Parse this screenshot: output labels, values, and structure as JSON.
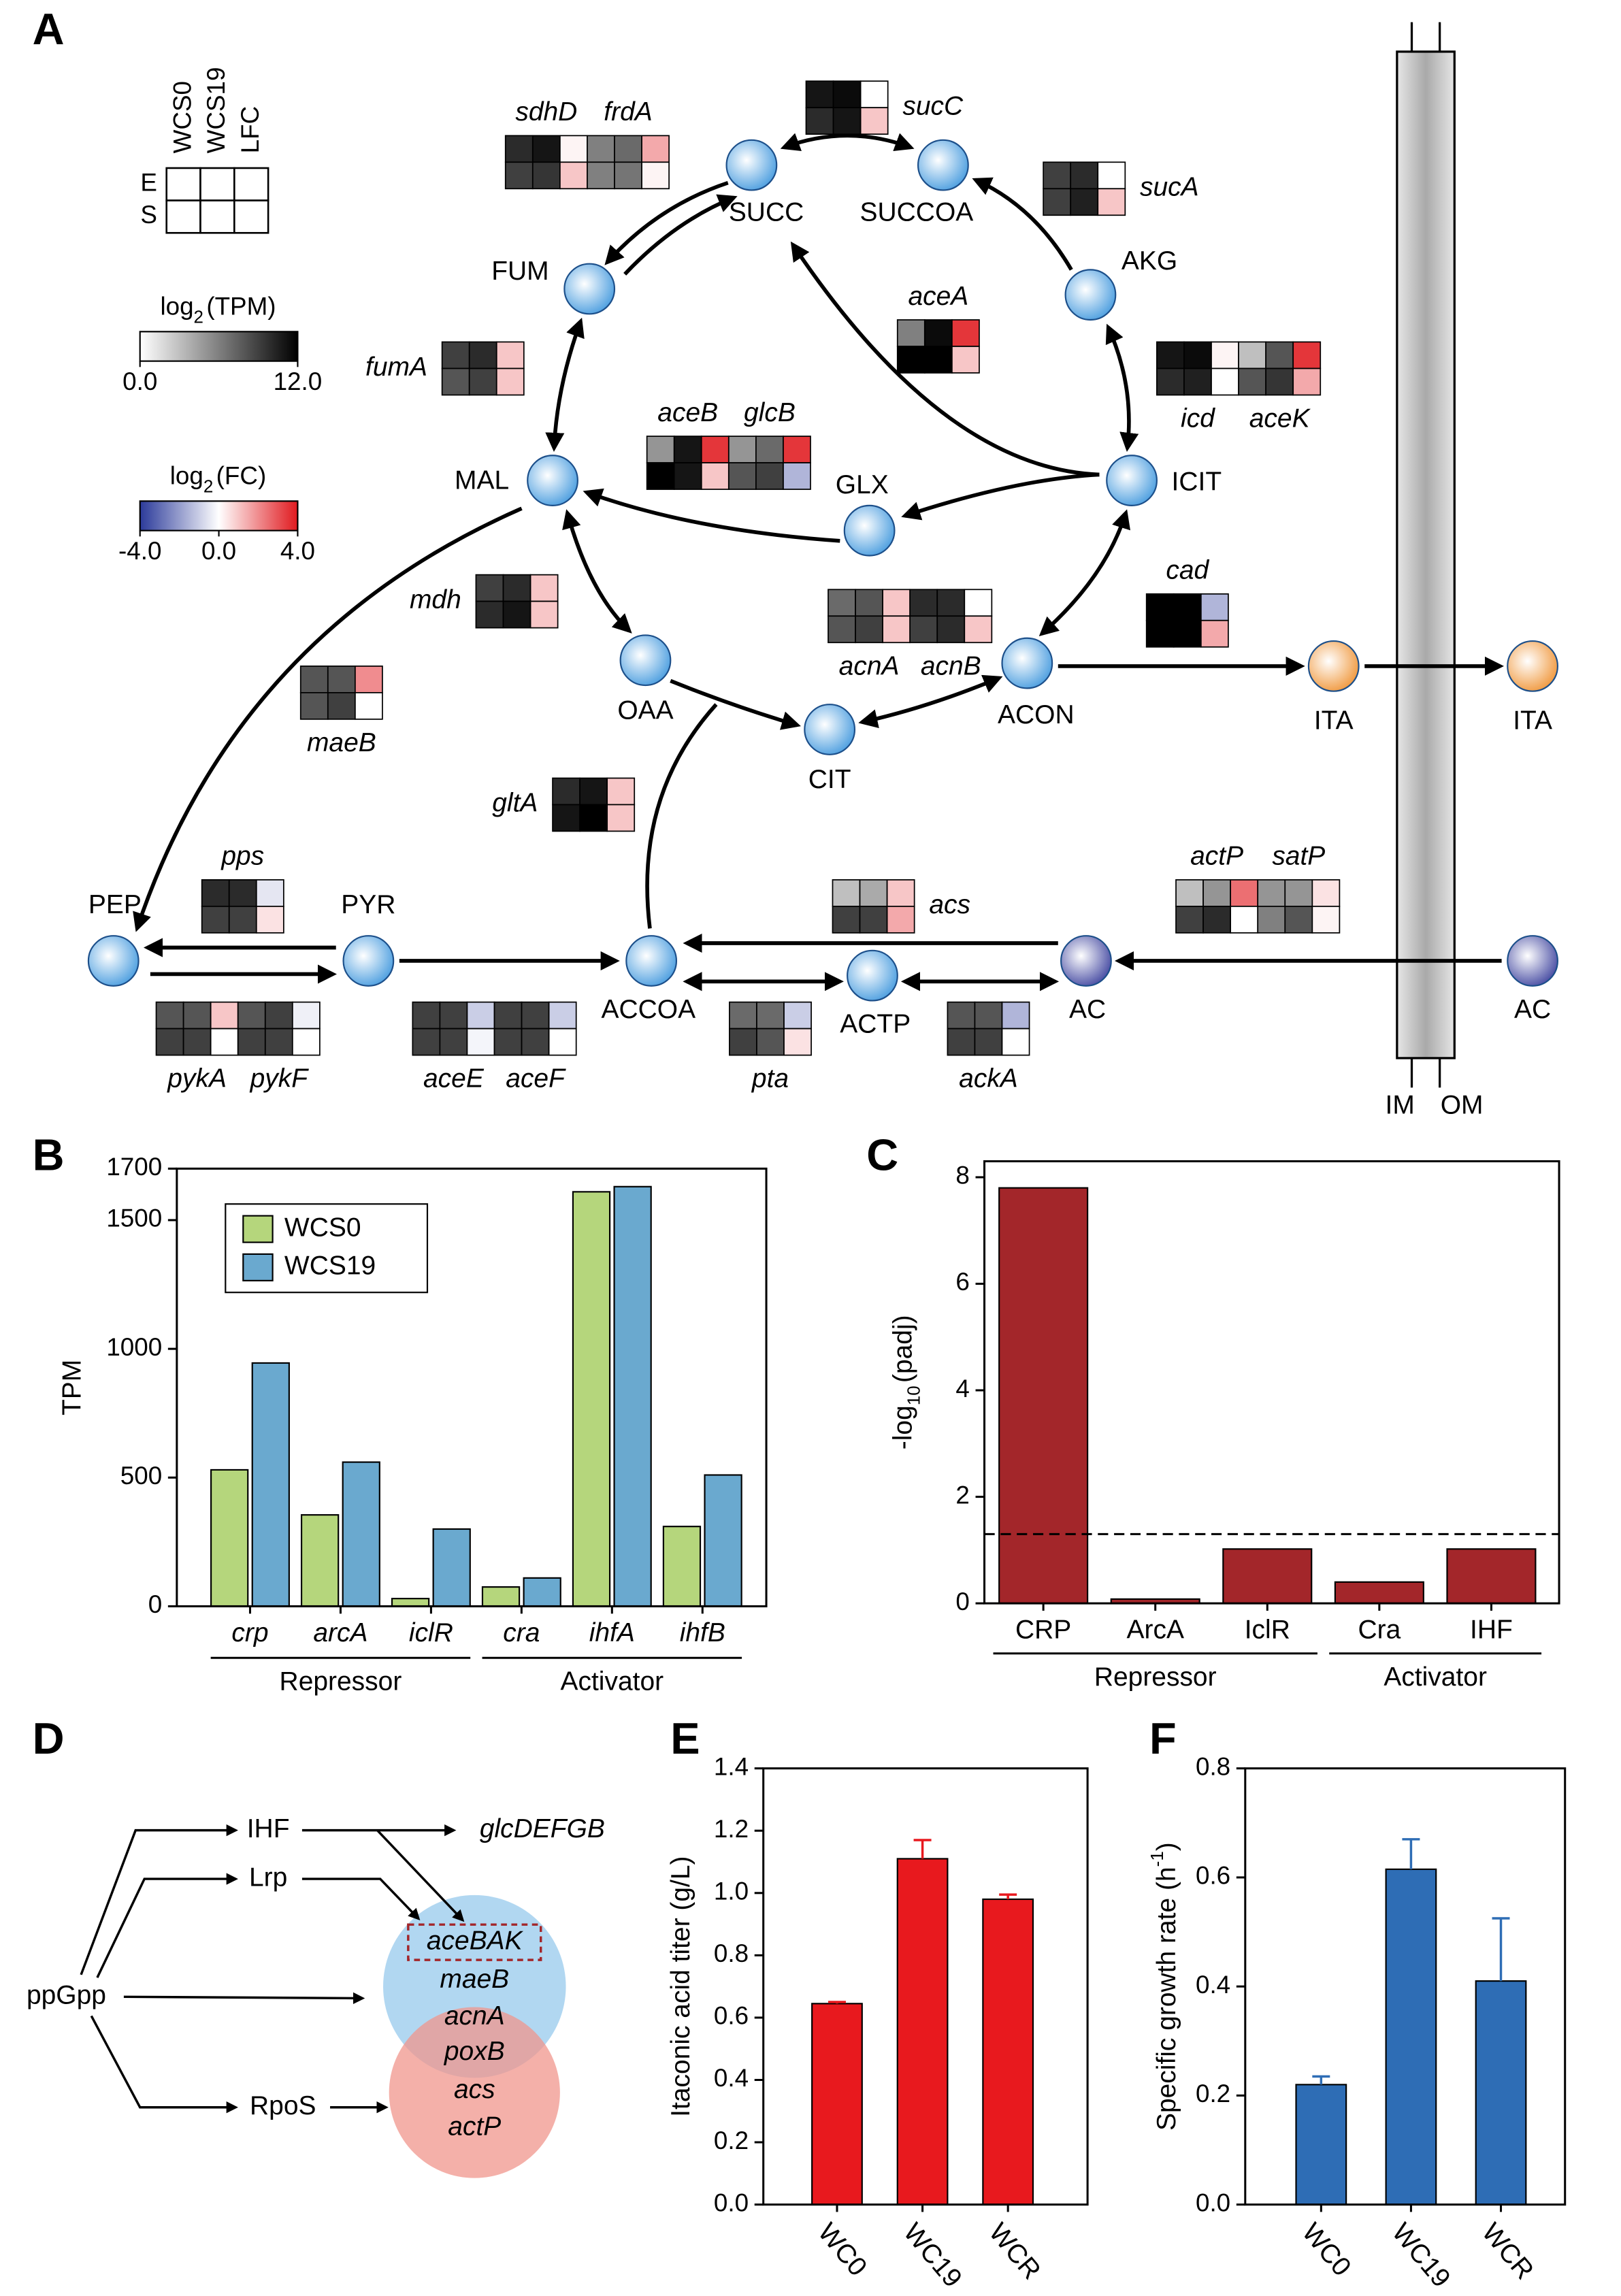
{
  "panel_labels": [
    "A",
    "B",
    "C",
    "D",
    "E",
    "F"
  ],
  "panel_a": {
    "legend": {
      "columns": [
        "WCS0",
        "WCS19",
        "LFC"
      ],
      "rows": [
        "E",
        "S"
      ]
    },
    "tpm_scale": {
      "label": {
        "main": "log",
        "sub": "2",
        "rest": "(TPM)"
      },
      "lim": [
        0,
        12
      ],
      "ticks": [
        {
          "value": 0,
          "label": "0.0"
        },
        {
          "value": 12,
          "label": "12.0"
        }
      ]
    },
    "fc_scale": {
      "label": {
        "main": "log",
        "sub": "2",
        "rest": "(FC)"
      },
      "lim": [
        -4,
        4
      ],
      "ticks": [
        {
          "value": -4,
          "label": "-4.0"
        },
        {
          "value": 0,
          "label": "0.0"
        },
        {
          "value": 4,
          "label": "4.0"
        }
      ]
    },
    "metabolites": [
      "SUCC",
      "SUCCOA",
      "AKG",
      "FUM",
      "ICIT",
      "MAL",
      "GLX",
      "OAA",
      "CIT",
      "ACON",
      "ITA",
      "ITA",
      "PEP",
      "PYR",
      "ACCOA",
      "ACTP",
      "AC",
      "AC"
    ],
    "membrane": [
      "IM",
      "OM"
    ],
    "heatmaps": [
      {
        "genes": [
          {
            "name": "sdhD",
            "tpm": [
              [
                10,
                11
              ],
              [
                9,
                9.5
              ]
            ],
            "lfc": [
              0.2,
              1
            ]
          },
          {
            "name": "frdA",
            "tpm": [
              [
                6,
                7
              ],
              [
                6,
                6.5
              ]
            ],
            "lfc": [
              1.5,
              0.2
            ]
          }
        ]
      },
      {
        "genes": [
          {
            "name": "sucC",
            "tpm": [
              [
                11,
                11.5
              ],
              [
                10,
                11
              ]
            ],
            "lfc": [
              0,
              1
            ]
          }
        ]
      },
      {
        "genes": [
          {
            "name": "sucA",
            "tpm": [
              [
                9,
                10
              ],
              [
                9,
                10.5
              ]
            ],
            "lfc": [
              0,
              1
            ]
          }
        ]
      },
      {
        "genes": [
          {
            "name": "fumA",
            "tpm": [
              [
                9,
                10
              ],
              [
                8,
                9
              ]
            ],
            "lfc": [
              1,
              1
            ]
          }
        ]
      },
      {
        "genes": [
          {
            "name": "aceA",
            "tpm": [
              [
                6,
                11.5
              ],
              [
                12,
                12
              ]
            ],
            "lfc": [
              3.5,
              1
            ]
          }
        ]
      },
      {
        "genes": [
          {
            "name": "icd",
            "tpm": [
              [
                11,
                11.5
              ],
              [
                10,
                10.5
              ]
            ],
            "lfc": [
              0.2,
              0
            ]
          },
          {
            "name": "aceK",
            "tpm": [
              [
                3,
                8
              ],
              [
                8,
                9.5
              ]
            ],
            "lfc": [
              3.5,
              1.5
            ]
          }
        ]
      },
      {
        "genes": [
          {
            "name": "aceB",
            "tpm": [
              [
                5,
                11
              ],
              [
                12,
                11
              ]
            ],
            "lfc": [
              3.5,
              1
            ]
          },
          {
            "name": "glcB",
            "tpm": [
              [
                5,
                7
              ],
              [
                8,
                9
              ]
            ],
            "lfc": [
              3.5,
              -1.5
            ]
          }
        ]
      },
      {
        "genes": [
          {
            "name": "mdh",
            "tpm": [
              [
                9,
                10
              ],
              [
                10,
                11
              ]
            ],
            "lfc": [
              1,
              1
            ]
          }
        ]
      },
      {
        "genes": [
          {
            "name": "maeB",
            "tpm": [
              [
                8,
                8
              ],
              [
                8,
                9
              ]
            ],
            "lfc": [
              2,
              0
            ]
          }
        ]
      },
      {
        "genes": [
          {
            "name": "acnA",
            "tpm": [
              [
                7,
                8
              ],
              [
                8,
                9
              ]
            ],
            "lfc": [
              1,
              1
            ]
          },
          {
            "name": "acnB",
            "tpm": [
              [
                10,
                10
              ],
              [
                9,
                10
              ]
            ],
            "lfc": [
              0,
              1
            ]
          }
        ]
      },
      {
        "genes": [
          {
            "name": "cad",
            "tpm": [
              [
                12,
                12
              ],
              [
                12,
                12
              ]
            ],
            "lfc": [
              -1.5,
              1.5
            ]
          }
        ]
      },
      {
        "genes": [
          {
            "name": "gltA",
            "tpm": [
              [
                10,
                11
              ],
              [
                11,
                12
              ]
            ],
            "lfc": [
              1,
              1
            ]
          }
        ]
      },
      {
        "genes": [
          {
            "name": "pps",
            "tpm": [
              [
                10,
                10
              ],
              [
                9,
                9
              ]
            ],
            "lfc": [
              -0.5,
              0.5
            ]
          }
        ]
      },
      {
        "genes": [
          {
            "name": "actP",
            "tpm": [
              [
                3,
                5
              ],
              [
                9,
                10
              ]
            ],
            "lfc": [
              2.5,
              0
            ]
          },
          {
            "name": "satP",
            "tpm": [
              [
                5,
                5
              ],
              [
                6,
                8
              ]
            ],
            "lfc": [
              0.5,
              0.2
            ]
          }
        ]
      },
      {
        "genes": [
          {
            "name": "acs",
            "tpm": [
              [
                3,
                4
              ],
              [
                9,
                9
              ]
            ],
            "lfc": [
              1,
              1.5
            ]
          }
        ]
      },
      {
        "genes": [
          {
            "name": "pykA",
            "tpm": [
              [
                8,
                8
              ],
              [
                9,
                9
              ]
            ],
            "lfc": [
              1,
              0
            ]
          },
          {
            "name": "pykF",
            "tpm": [
              [
                8,
                9
              ],
              [
                9,
                9
              ]
            ],
            "lfc": [
              -0.3,
              0
            ]
          }
        ]
      },
      {
        "genes": [
          {
            "name": "aceE",
            "tpm": [
              [
                9,
                9
              ],
              [
                9,
                9
              ]
            ],
            "lfc": [
              -1,
              -0.2
            ]
          },
          {
            "name": "aceF",
            "tpm": [
              [
                9,
                9
              ],
              [
                9,
                9
              ]
            ],
            "lfc": [
              -1,
              0
            ]
          }
        ]
      },
      {
        "genes": [
          {
            "name": "pta",
            "tpm": [
              [
                7,
                7
              ],
              [
                9,
                8
              ]
            ],
            "lfc": [
              -1,
              0.5
            ]
          }
        ]
      },
      {
        "genes": [
          {
            "name": "ackA",
            "tpm": [
              [
                8,
                8
              ],
              [
                9,
                9
              ]
            ],
            "lfc": [
              -1.5,
              0
            ]
          }
        ]
      }
    ]
  },
  "chart_data": [
    {
      "type": "bar",
      "ylabel": "TPM",
      "categories": [
        "crp",
        "arcA",
        "iclR",
        "cra",
        "ihfA",
        "ihfB"
      ],
      "series": [
        {
          "name": "WCS0",
          "color": "#b5d67c",
          "values": [
            530,
            355,
            30,
            75,
            1610,
            310
          ]
        },
        {
          "name": "WCS19",
          "color": "#6aa9cf",
          "values": [
            945,
            560,
            300,
            110,
            1630,
            510
          ]
        }
      ],
      "ylim": [
        0,
        1700
      ],
      "yticks": [
        0,
        500,
        1000,
        1500,
        1700
      ],
      "legend": "upper left",
      "group_labels": [
        "Repressor",
        "Activator"
      ]
    },
    {
      "type": "bar",
      "ylabel": {
        "main": "-log",
        "sub": "10",
        "rest": "(padj)"
      },
      "categories": [
        "CRP",
        "ArcA",
        "IclR",
        "Cra",
        "IHF"
      ],
      "values": [
        7.8,
        0.08,
        1.02,
        0.4,
        1.02
      ],
      "color": "#a3262a",
      "ylim": [
        0,
        8.3
      ],
      "yticks": [
        0,
        2,
        4,
        6,
        8
      ],
      "threshold": 1.3,
      "group_labels": [
        "Repressor",
        "Activator"
      ]
    },
    {
      "type": "bar",
      "ylabel": "Itaconic acid titer (g/L)",
      "categories": [
        "WC0",
        "WC19",
        "WCR"
      ],
      "values": [
        0.645,
        1.11,
        0.98
      ],
      "errors": [
        0.005,
        0.06,
        0.015
      ],
      "color": "#e8191e",
      "ylim": [
        0,
        1.4
      ],
      "yticks": [
        {
          "value": 0,
          "label": "0.0"
        },
        {
          "value": 0.2,
          "label": "0.2"
        },
        {
          "value": 0.4,
          "label": "0.4"
        },
        {
          "value": 0.6,
          "label": "0.6"
        },
        {
          "value": 0.8,
          "label": "0.8"
        },
        {
          "value": 1,
          "label": "1.0"
        },
        {
          "value": 1.2,
          "label": "1.2"
        },
        {
          "value": 1.4,
          "label": "1.4"
        }
      ]
    },
    {
      "type": "bar",
      "ylabel": {
        "main": "Specific growth rate (h",
        "sup": "-1",
        "rest": ")"
      },
      "categories": [
        "WC0",
        "WC19",
        "WCR"
      ],
      "values": [
        0.22,
        0.615,
        0.41
      ],
      "errors": [
        0.015,
        0.055,
        0.115
      ],
      "color": "#2e6db5",
      "ylim": [
        0,
        0.8
      ],
      "yticks": [
        {
          "value": 0,
          "label": "0.0"
        },
        {
          "value": 0.2,
          "label": "0.2"
        },
        {
          "value": 0.4,
          "label": "0.4"
        },
        {
          "value": 0.6,
          "label": "0.6"
        },
        {
          "value": 0.8,
          "label": "0.8"
        }
      ]
    }
  ],
  "panel_d": {
    "regulators": [
      "ppGpp",
      "IHF",
      "Lrp",
      "RpoS"
    ],
    "target": "glcDEFGB",
    "genes": [
      "aceBAK",
      "maeB",
      "acnA",
      "poxB",
      "acs",
      "actP"
    ]
  }
}
